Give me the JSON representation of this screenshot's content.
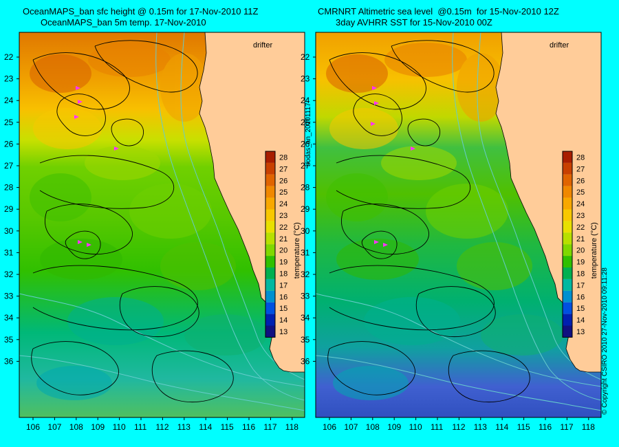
{
  "left_panel": {
    "title_line1": "OceanMAPS_ban sfc height @ 0.15m for 17-Nov-2010 11Z",
    "title_line2": "OceanMAPS_ban 5m temp. 17-Nov-2010",
    "drifter_label": "drifter"
  },
  "right_panel": {
    "title_line1": "CMRNRT Altimetric sea level  @0.15m  for 15-Nov-2010 12Z",
    "title_line2": "3day AVHRR SST for 15-Nov-2010 00Z",
    "drifter_label": "drifter"
  },
  "axes": {
    "lat_ticks": [
      "22",
      "23",
      "24",
      "25",
      "26",
      "27",
      "28",
      "29",
      "30",
      "31",
      "32",
      "33",
      "34",
      "35",
      "36"
    ],
    "lon_ticks": [
      "106",
      "107",
      "108",
      "109",
      "110",
      "111",
      "112",
      "113",
      "114",
      "115",
      "116",
      "117",
      "118"
    ]
  },
  "colorbar": {
    "label": "temperature (°C)",
    "ticks": [
      "28",
      "27",
      "26",
      "25",
      "24",
      "23",
      "22",
      "21",
      "20",
      "19",
      "18",
      "17",
      "16",
      "15",
      "14",
      "13"
    ],
    "colors": [
      "#a81e00",
      "#c84000",
      "#e06400",
      "#f08800",
      "#f8a800",
      "#f8c800",
      "#e8e000",
      "#b8e000",
      "#80d800",
      "#30c000",
      "#00b050",
      "#00b8a0",
      "#0090d0",
      "#0050e0",
      "#0020b0",
      "#101080"
    ]
  },
  "side_labels": {
    "middle": "bodas_an_20101117",
    "right": "© Copyright CSIRO 2010   27-Nov-2010 09:11:28"
  },
  "colors": {
    "background": "#00ffff",
    "land": "#ffcc99",
    "drifter": "#ff33ff",
    "contour": "#000000",
    "isobath": "#66cccc"
  }
}
